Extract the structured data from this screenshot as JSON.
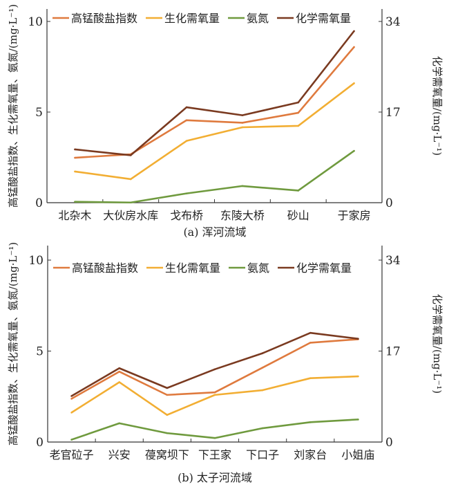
{
  "colors": {
    "permanganate": "#df7a3e",
    "bod": "#f2ae33",
    "ammonia": "#6f9a3e",
    "cod": "#7a3a20"
  },
  "chart_data": [
    {
      "type": "line",
      "title": "(a) 浑河流域",
      "ylabel": "高锰酸盐指数、生化需氧量、氨氮/(mg·L⁻¹)",
      "y2label": "化学需氧量/(mg·L⁻¹)",
      "ylim": [
        0,
        10
      ],
      "yticks": [
        "0",
        "5",
        "10"
      ],
      "y2lim": [
        0,
        34
      ],
      "y2ticks": [
        "0",
        "17",
        "34"
      ],
      "legend": "top",
      "categories": [
        "北杂木",
        "大伙房水库",
        "戈布桥",
        "东陵大桥",
        "砂山",
        "于家房"
      ],
      "series": [
        {
          "name": "高锰酸盐指数",
          "key": "permanganate",
          "axis": "left",
          "values": [
            2.48,
            2.67,
            4.55,
            4.41,
            4.96,
            8.59
          ]
        },
        {
          "name": "生化需氧量",
          "key": "bod",
          "axis": "left",
          "values": [
            1.72,
            1.3,
            3.41,
            4.16,
            4.24,
            6.59
          ]
        },
        {
          "name": "氨氮",
          "key": "ammonia",
          "axis": "left",
          "values": [
            0.05,
            0.01,
            0.51,
            0.92,
            0.67,
            2.86
          ]
        },
        {
          "name": "化学需氧量",
          "key": "cod",
          "axis": "right",
          "values": [
            10.0,
            8.9,
            17.9,
            16.4,
            18.8,
            32.2
          ]
        }
      ]
    },
    {
      "type": "line",
      "title": "(b) 太子河流域",
      "ylabel": "高锰酸盐指数、生化需氧量、氨氮/(mg·L⁻¹)",
      "y2label": "化学需氧量/(mg·L⁻¹)",
      "ylim": [
        0,
        10
      ],
      "yticks": [
        "0",
        "5",
        "10"
      ],
      "y2lim": [
        0,
        34
      ],
      "y2ticks": [
        "0",
        "17",
        "34"
      ],
      "legend": "top",
      "categories": [
        "老官砬子",
        "兴安",
        "葠窝坝下",
        "下王家",
        "下口子",
        "刘家台",
        "小姐庙"
      ],
      "series": [
        {
          "name": "高锰酸盐指数",
          "key": "permanganate",
          "axis": "left",
          "values": [
            2.38,
            3.87,
            2.59,
            2.73,
            4.09,
            5.46,
            5.65
          ]
        },
        {
          "name": "生化需氧量",
          "key": "bod",
          "axis": "left",
          "values": [
            1.62,
            3.29,
            1.49,
            2.59,
            2.85,
            3.51,
            3.61
          ]
        },
        {
          "name": "氨氮",
          "key": "ammonia",
          "axis": "left",
          "values": [
            0.13,
            1.03,
            0.49,
            0.22,
            0.76,
            1.09,
            1.24
          ]
        },
        {
          "name": "化学需氧量",
          "key": "cod",
          "axis": "right",
          "values": [
            8.6,
            13.8,
            10.1,
            13.6,
            16.6,
            20.4,
            19.3
          ]
        }
      ]
    }
  ]
}
